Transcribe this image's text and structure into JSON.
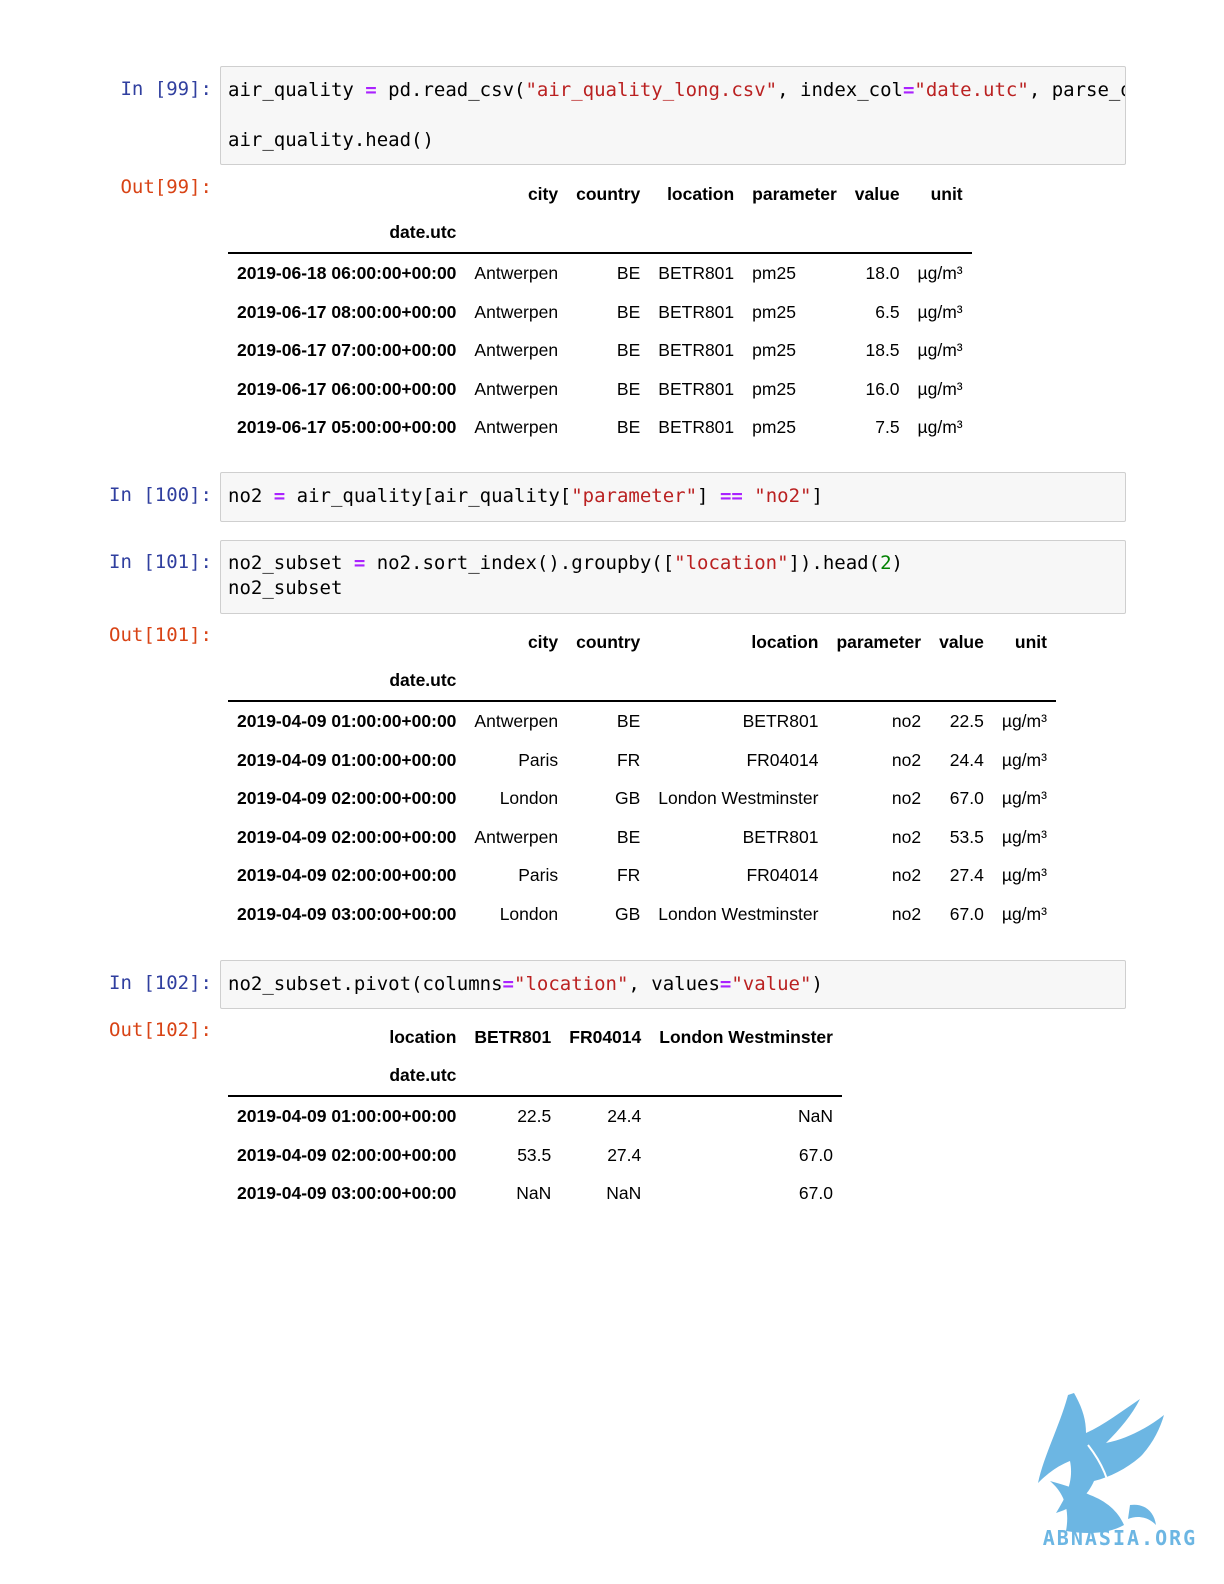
{
  "cells": [
    {
      "in_prompt": "In [99]:",
      "code_lines": [
        [
          {
            "t": "air_quality "
          },
          {
            "t": "=",
            "c": "op"
          },
          {
            "t": " pd.read_csv("
          },
          {
            "t": "\"air_quality_long.csv\"",
            "c": "str"
          },
          {
            "t": ", index_col"
          },
          {
            "t": "=",
            "c": "op"
          },
          {
            "t": "\"date.utc\"",
            "c": "str"
          },
          {
            "t": ", parse_d"
          }
        ],
        [],
        [
          {
            "t": "air_quality.head()"
          }
        ]
      ],
      "out_prompt": "Out[99]:",
      "table": {
        "columns": [
          "city",
          "country",
          "location",
          "parameter",
          "value",
          "unit"
        ],
        "index_name": "date.utc",
        "rows": [
          {
            "index": "2019-06-18 06:00:00+00:00",
            "values": [
              "Antwerpen",
              "BE",
              "BETR801",
              "pm25",
              "18.0",
              "µg/m³"
            ]
          },
          {
            "index": "2019-06-17 08:00:00+00:00",
            "values": [
              "Antwerpen",
              "BE",
              "BETR801",
              "pm25",
              "6.5",
              "µg/m³"
            ]
          },
          {
            "index": "2019-06-17 07:00:00+00:00",
            "values": [
              "Antwerpen",
              "BE",
              "BETR801",
              "pm25",
              "18.5",
              "µg/m³"
            ]
          },
          {
            "index": "2019-06-17 06:00:00+00:00",
            "values": [
              "Antwerpen",
              "BE",
              "BETR801",
              "pm25",
              "16.0",
              "µg/m³"
            ]
          },
          {
            "index": "2019-06-17 05:00:00+00:00",
            "values": [
              "Antwerpen",
              "BE",
              "BETR801",
              "pm25",
              "7.5",
              "µg/m³"
            ]
          }
        ]
      }
    },
    {
      "in_prompt": "In [100]:",
      "code_lines": [
        [
          {
            "t": "no2 "
          },
          {
            "t": "=",
            "c": "op"
          },
          {
            "t": " air_quality[air_quality["
          },
          {
            "t": "\"parameter\"",
            "c": "str"
          },
          {
            "t": "] "
          },
          {
            "t": "==",
            "c": "op"
          },
          {
            "t": " "
          },
          {
            "t": "\"no2\"",
            "c": "str"
          },
          {
            "t": "]"
          }
        ]
      ]
    },
    {
      "in_prompt": "In [101]:",
      "code_lines": [
        [
          {
            "t": "no2_subset "
          },
          {
            "t": "=",
            "c": "op"
          },
          {
            "t": " no2.sort_index().groupby(["
          },
          {
            "t": "\"location\"",
            "c": "str"
          },
          {
            "t": "]).head("
          },
          {
            "t": "2",
            "c": "num"
          },
          {
            "t": ")"
          }
        ],
        [
          {
            "t": "no2_subset"
          }
        ]
      ],
      "out_prompt": "Out[101]:",
      "table": {
        "columns": [
          "city",
          "country",
          "location",
          "parameter",
          "value",
          "unit"
        ],
        "index_name": "date.utc",
        "rows": [
          {
            "index": "2019-04-09 01:00:00+00:00",
            "values": [
              "Antwerpen",
              "BE",
              "BETR801",
              "no2",
              "22.5",
              "µg/m³"
            ]
          },
          {
            "index": "2019-04-09 01:00:00+00:00",
            "values": [
              "Paris",
              "FR",
              "FR04014",
              "no2",
              "24.4",
              "µg/m³"
            ]
          },
          {
            "index": "2019-04-09 02:00:00+00:00",
            "values": [
              "London",
              "GB",
              "London Westminster",
              "no2",
              "67.0",
              "µg/m³"
            ]
          },
          {
            "index": "2019-04-09 02:00:00+00:00",
            "values": [
              "Antwerpen",
              "BE",
              "BETR801",
              "no2",
              "53.5",
              "µg/m³"
            ]
          },
          {
            "index": "2019-04-09 02:00:00+00:00",
            "values": [
              "Paris",
              "FR",
              "FR04014",
              "no2",
              "27.4",
              "µg/m³"
            ]
          },
          {
            "index": "2019-04-09 03:00:00+00:00",
            "values": [
              "London",
              "GB",
              "London Westminster",
              "no2",
              "67.0",
              "µg/m³"
            ]
          }
        ]
      }
    },
    {
      "in_prompt": "In [102]:",
      "code_lines": [
        [
          {
            "t": "no2_subset.pivot(columns"
          },
          {
            "t": "=",
            "c": "op"
          },
          {
            "t": "\"location\"",
            "c": "str"
          },
          {
            "t": ", values"
          },
          {
            "t": "=",
            "c": "op"
          },
          {
            "t": "\"value\"",
            "c": "str"
          },
          {
            "t": ")"
          }
        ]
      ],
      "out_prompt": "Out[102]:",
      "table": {
        "columns_name": "location",
        "columns": [
          "BETR801",
          "FR04014",
          "London Westminster"
        ],
        "index_name": "date.utc",
        "rows": [
          {
            "index": "2019-04-09 01:00:00+00:00",
            "values": [
              "22.5",
              "24.4",
              "NaN"
            ]
          },
          {
            "index": "2019-04-09 02:00:00+00:00",
            "values": [
              "53.5",
              "27.4",
              "67.0"
            ]
          },
          {
            "index": "2019-04-09 03:00:00+00:00",
            "values": [
              "NaN",
              "NaN",
              "67.0"
            ]
          }
        ]
      }
    }
  ],
  "watermark": {
    "text": "ABNASIA.ORG",
    "icon": "griffin-logo-icon",
    "color": "#6cb6e3"
  },
  "colors": {
    "in_prompt": "#303f9f",
    "out_prompt": "#d84315",
    "string": "#ba2121",
    "operator": "#aa22ff",
    "number": "#008000"
  }
}
